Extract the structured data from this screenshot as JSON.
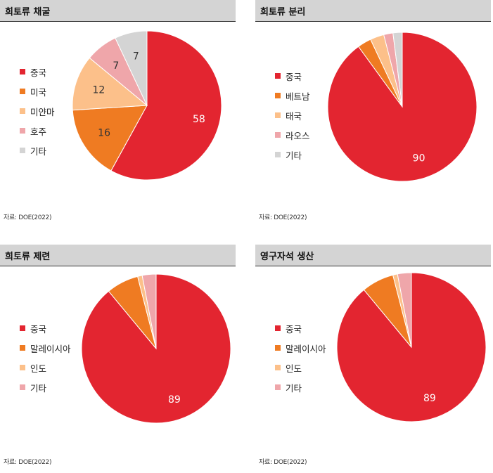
{
  "source_text": "자료: DOE(2022)",
  "chart_data": [
    {
      "type": "pie",
      "title": "희토류 채굴",
      "categories": [
        "중국",
        "미국",
        "미얀마",
        "호주",
        "기타"
      ],
      "values": [
        58,
        16,
        12,
        7,
        7
      ],
      "colors": [
        "#e32530",
        "#ef7b22",
        "#fcc08a",
        "#efa6aa",
        "#d4d4d4"
      ],
      "labels": [
        "58",
        "16",
        "12",
        "7",
        "7"
      ],
      "label_colors": [
        "#ffffff",
        "#333333",
        "#333333",
        "#333333",
        "#333333"
      ],
      "legend_position": "left"
    },
    {
      "type": "pie",
      "title": "희토류 분리",
      "categories": [
        "중국",
        "베트남",
        "태국",
        "라오스",
        "기타"
      ],
      "values": [
        90,
        3,
        3,
        2,
        2
      ],
      "colors": [
        "#e32530",
        "#ef7b22",
        "#fcc08a",
        "#efa6aa",
        "#d4d4d4"
      ],
      "labels": [
        "90",
        "",
        "",
        "",
        ""
      ],
      "label_colors": [
        "#ffffff",
        "#333333",
        "#333333",
        "#333333",
        "#333333"
      ],
      "legend_position": "left"
    },
    {
      "type": "pie",
      "title": "희토류 제련",
      "categories": [
        "중국",
        "말레이시아",
        "인도",
        "기타"
      ],
      "values": [
        89,
        7,
        1,
        3
      ],
      "colors": [
        "#e32530",
        "#ef7b22",
        "#fcc08a",
        "#efa6aa"
      ],
      "labels": [
        "89",
        "",
        "",
        ""
      ],
      "label_colors": [
        "#ffffff",
        "#333333",
        "#333333",
        "#333333"
      ],
      "legend_position": "left"
    },
    {
      "type": "pie",
      "title": "영구자석 생산",
      "categories": [
        "중국",
        "말레이시아",
        "인도",
        "기타"
      ],
      "values": [
        89,
        7,
        1,
        3
      ],
      "colors": [
        "#e32530",
        "#ef7b22",
        "#fcc08a",
        "#efa6aa"
      ],
      "labels": [
        "89",
        "",
        "",
        ""
      ],
      "label_colors": [
        "#ffffff",
        "#333333",
        "#333333",
        "#333333"
      ],
      "legend_position": "left"
    }
  ]
}
